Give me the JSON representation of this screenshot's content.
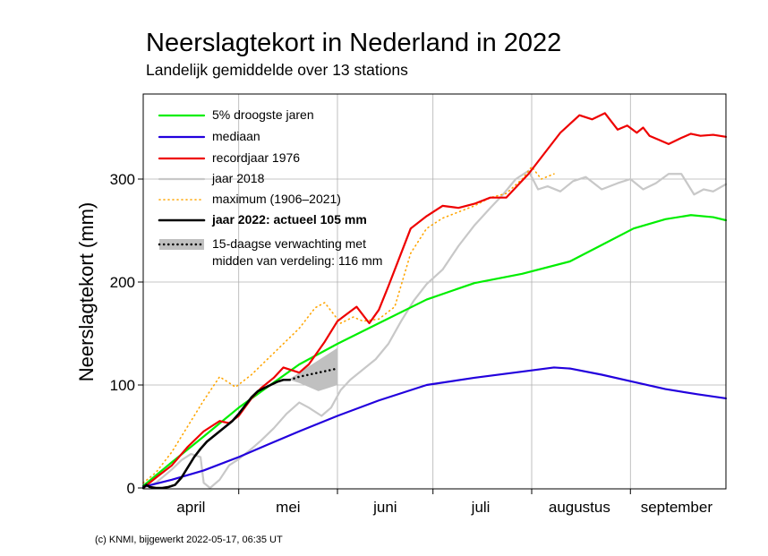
{
  "chart_data": {
    "type": "line",
    "title": "Neerslagtekort in Nederland in 2022",
    "subtitle": "Landelijk gemiddelde over 13 stations",
    "ylabel": "Neerslagtekort (mm)",
    "xlabel": "",
    "x_unit": "day of year (1 apr = 91)",
    "xlim": [
      91,
      274
    ],
    "ylim": [
      0,
      370
    ],
    "y_ticks": [
      0,
      100,
      200,
      300
    ],
    "month_labels": [
      {
        "label": "april",
        "x": 106
      },
      {
        "label": "mei",
        "x": 136.5
      },
      {
        "label": "juni",
        "x": 167
      },
      {
        "label": "juli",
        "x": 197
      },
      {
        "label": "augustus",
        "x": 228
      },
      {
        "label": "september",
        "x": 258.5
      }
    ],
    "month_boundaries": [
      121,
      152,
      182,
      213,
      244
    ],
    "grid": true,
    "legend_position": "top-left",
    "copyright": "(c) KNMI, bijgewerkt 2022-05-17, 06:35 UT",
    "series": [
      {
        "name": "5% droogste jaren",
        "color": "#00ee00",
        "style": "solid",
        "x": [
          91,
          100,
          110,
          121,
          130,
          140,
          152,
          165,
          180,
          195,
          210,
          225,
          235,
          245,
          255,
          263,
          270,
          274
        ],
        "y": [
          2,
          25,
          50,
          78,
          98,
          120,
          140,
          160,
          183,
          199,
          208,
          220,
          236,
          252,
          261,
          265,
          263,
          260
        ]
      },
      {
        "name": "mediaan",
        "color": "#2200dd",
        "style": "solid",
        "x": [
          91,
          100,
          110,
          121,
          130,
          140,
          152,
          165,
          180,
          195,
          210,
          220,
          225,
          235,
          245,
          255,
          265,
          274
        ],
        "y": [
          1,
          8,
          17,
          30,
          42,
          55,
          70,
          85,
          100,
          107,
          113,
          117,
          116,
          110,
          103,
          96,
          91,
          87
        ]
      },
      {
        "name": "recordjaar 1976",
        "color": "#ee0000",
        "style": "solid",
        "x": [
          91,
          95,
          100,
          105,
          110,
          115,
          118,
          121,
          125,
          128,
          132,
          135,
          140,
          143,
          148,
          152,
          158,
          162,
          165,
          168,
          172,
          175,
          180,
          185,
          190,
          195,
          200,
          205,
          212,
          217,
          222,
          228,
          232,
          236,
          240,
          243,
          246,
          248,
          250,
          253,
          256,
          260,
          263,
          266,
          270,
          274
        ],
        "y": [
          0,
          10,
          22,
          40,
          55,
          65,
          63,
          70,
          87,
          97,
          107,
          117,
          112,
          120,
          142,
          162,
          176,
          160,
          173,
          196,
          228,
          252,
          264,
          274,
          272,
          276,
          282,
          282,
          305,
          325,
          345,
          362,
          358,
          364,
          348,
          352,
          345,
          350,
          342,
          338,
          334,
          340,
          344,
          342,
          343,
          341
        ]
      },
      {
        "name": "jaar 2018",
        "color": "#c8c8c8",
        "style": "solid",
        "x": [
          91,
          95,
          100,
          103,
          106,
          109,
          110,
          112,
          115,
          118,
          121,
          125,
          128,
          132,
          136,
          140,
          143,
          147,
          150,
          153,
          156,
          160,
          164,
          168,
          172,
          176,
          180,
          185,
          190,
          195,
          200,
          204,
          208,
          212,
          215,
          218,
          222,
          226,
          230,
          235,
          240,
          244,
          248,
          252,
          256,
          260,
          264,
          267,
          270,
          274
        ],
        "y": [
          0,
          5,
          18,
          27,
          33,
          30,
          5,
          0,
          8,
          22,
          28,
          38,
          46,
          58,
          72,
          83,
          78,
          70,
          78,
          95,
          105,
          115,
          125,
          140,
          162,
          182,
          198,
          212,
          235,
          255,
          272,
          285,
          300,
          308,
          290,
          293,
          288,
          298,
          302,
          290,
          296,
          300,
          290,
          296,
          305,
          305,
          285,
          290,
          288,
          295
        ]
      },
      {
        "name": "maximum (1906–2021)",
        "color": "#ffa500",
        "style": "dotted",
        "x": [
          91,
          95,
          100,
          105,
          110,
          115,
          120,
          125,
          130,
          135,
          140,
          145,
          148,
          150,
          153,
          157,
          160,
          165,
          170,
          175,
          180,
          185,
          190,
          195,
          200,
          205,
          210,
          212,
          213,
          216,
          220
        ],
        "y": [
          5,
          15,
          35,
          60,
          85,
          108,
          98,
          110,
          125,
          140,
          155,
          175,
          180,
          172,
          160,
          166,
          162,
          164,
          176,
          228,
          252,
          262,
          268,
          274,
          282,
          286,
          300,
          308,
          312,
          300,
          305
        ]
      },
      {
        "name": "jaar 2022: actueel 105 mm",
        "color": "#000000",
        "style": "solid",
        "x": [
          91,
          92,
          93,
          95,
          97,
          99,
          101,
          103,
          105,
          107,
          109,
          111,
          113,
          115,
          117,
          119,
          121,
          123,
          125,
          127,
          129,
          131,
          133,
          135,
          137
        ],
        "y": [
          0,
          3,
          1,
          0,
          0,
          1,
          3,
          10,
          20,
          30,
          38,
          45,
          50,
          55,
          60,
          65,
          72,
          80,
          88,
          94,
          97,
          100,
          103,
          105,
          105
        ]
      },
      {
        "name": "15-daagse verwachting met\nmidden van verdeling: 116 mm",
        "color": "#000000",
        "style": "dotted",
        "x": [
          137,
          140,
          143,
          146,
          149,
          152
        ],
        "y": [
          105,
          108,
          110,
          112,
          114,
          116
        ],
        "band_x": [
          137,
          140,
          143,
          146,
          149,
          152
        ],
        "band_low": [
          105,
          102,
          98,
          94,
          97,
          100
        ],
        "band_high": [
          106,
          112,
          118,
          124,
          130,
          136
        ]
      }
    ]
  }
}
